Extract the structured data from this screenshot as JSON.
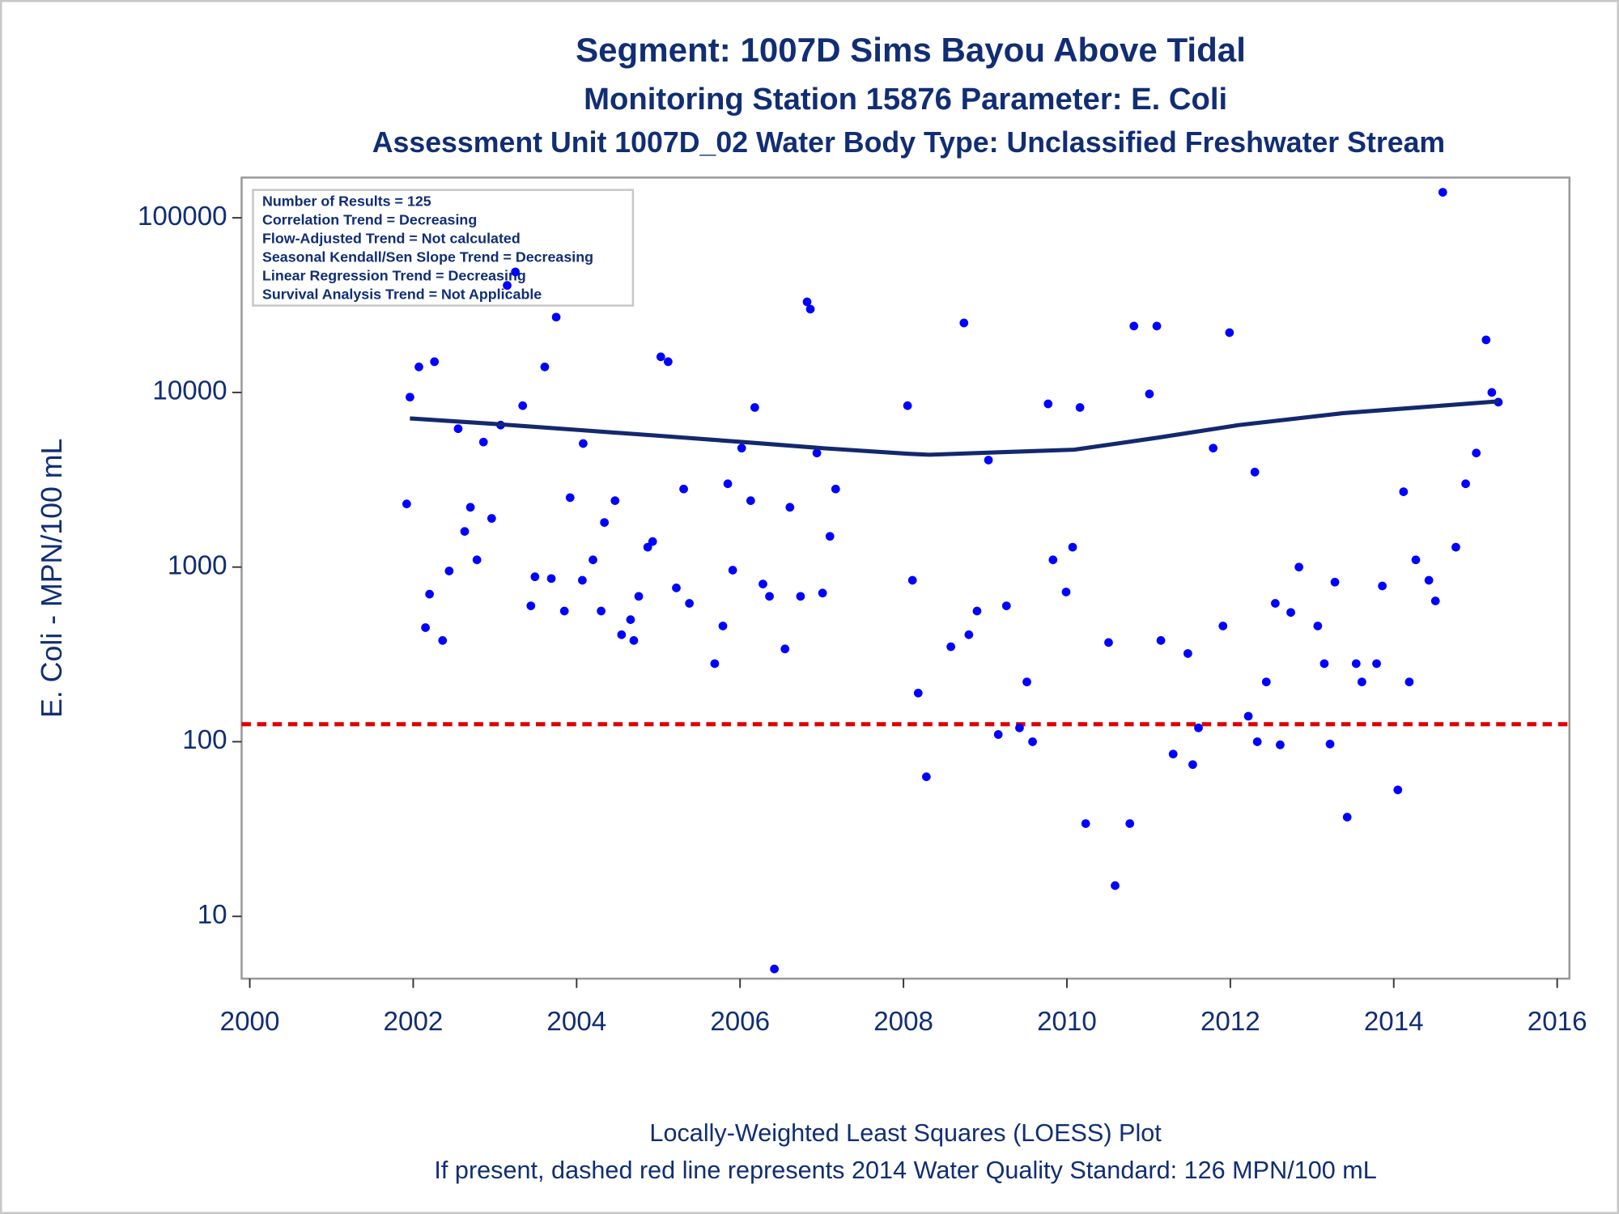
{
  "chart_data": {
    "type": "scatter",
    "title": "Segment: 1007D  Sims Bayou Above Tidal",
    "subtitle": "Monitoring Station 15876 Parameter: E. Coli",
    "subtitle2": "Assessment Unit 1007D_02   Water Body Type: Unclassified Freshwater Stream",
    "y_label": "E. Coli - MPN/100 mL",
    "footnotes": [
      "Locally-Weighted Least Squares (LOESS) Plot",
      "If present, dashed red line represents 2014 Water Quality Standard: 126 MPN/100 mL"
    ],
    "stats": [
      "Number of Results = 125",
      "Correlation Trend = Decreasing",
      "Flow-Adjusted Trend = Not calculated",
      "Seasonal Kendall/Sen Slope Trend = Decreasing",
      "Linear Regression Trend = Decreasing",
      "Survival Analysis Trend = Not Applicable"
    ],
    "log_y": true,
    "xlim": [
      1999.9,
      2016.15
    ],
    "xticks": [
      2000,
      2002,
      2004,
      2006,
      2008,
      2010,
      2012,
      2014,
      2016
    ],
    "ylim": [
      4.4,
      170000
    ],
    "yticks": [
      10,
      100,
      1000,
      10000,
      100000
    ],
    "color": "#0000ff",
    "x": [
      2001.92,
      2001.96,
      2002.07,
      2002.15,
      2002.2,
      2002.26,
      2002.36,
      2002.44,
      2002.55,
      2002.63,
      2002.7,
      2002.78,
      2002.86,
      2002.96,
      2003.07,
      2003.15,
      2003.25,
      2003.34,
      2003.44,
      2003.49,
      2003.61,
      2003.69,
      2003.75,
      2003.85,
      2003.92,
      2004.07,
      2004.08,
      2004.2,
      2004.3,
      2004.34,
      2004.47,
      2004.55,
      2004.66,
      2004.7,
      2004.76,
      2004.87,
      2004.93,
      2005.03,
      2005.12,
      2005.22,
      2005.31,
      2005.38,
      2005.69,
      2005.79,
      2005.85,
      2005.91,
      2006.02,
      2006.13,
      2006.18,
      2006.28,
      2006.36,
      2006.42,
      2006.55,
      2006.61,
      2006.74,
      2006.82,
      2006.86,
      2006.94,
      2007.01,
      2007.1,
      2007.17,
      2008.05,
      2008.11,
      2008.18,
      2008.28,
      2008.58,
      2008.74,
      2008.8,
      2008.9,
      2009.04,
      2009.16,
      2009.26,
      2009.42,
      2009.51,
      2009.58,
      2009.77,
      2009.83,
      2009.99,
      2010.07,
      2010.16,
      2010.23,
      2010.51,
      2010.59,
      2010.77,
      2010.82,
      2011.01,
      2011.1,
      2011.15,
      2011.3,
      2011.48,
      2011.54,
      2011.61,
      2011.79,
      2011.91,
      2011.99,
      2012.22,
      2012.3,
      2012.33,
      2012.44,
      2012.55,
      2012.61,
      2012.74,
      2012.84,
      2013.07,
      2013.15,
      2013.22,
      2013.28,
      2013.43,
      2013.54,
      2013.61,
      2013.79,
      2013.86,
      2014.05,
      2014.12,
      2014.19,
      2014.27,
      2014.43,
      2014.51,
      2014.6,
      2014.76,
      2014.88,
      2015.01,
      2015.13,
      2015.2,
      2015.28
    ],
    "values": [
      2300,
      9400,
      14000,
      450,
      700,
      15000,
      380,
      950,
      6200,
      1600,
      2200,
      1100,
      5200,
      1900,
      6500,
      41000,
      49000,
      8400,
      600,
      880,
      14000,
      860,
      27000,
      560,
      2500,
      840,
      5100,
      1100,
      560,
      1800,
      2400,
      410,
      500,
      380,
      680,
      1300,
      1400,
      16000,
      15000,
      760,
      2800,
      620,
      280,
      460,
      3000,
      960,
      4800,
      2400,
      8200,
      800,
      680,
      5,
      340,
      2200,
      680,
      33000,
      30000,
      4500,
      710,
      1500,
      2800,
      8400,
      840,
      190,
      63,
      350,
      25000,
      410,
      560,
      4100,
      110,
      600,
      120,
      220,
      100,
      8600,
      1100,
      720,
      1300,
      8200,
      34,
      370,
      15,
      34,
      24000,
      9800,
      24000,
      380,
      85,
      320,
      74,
      120,
      4800,
      460,
      22000,
      140,
      3500,
      100,
      220,
      620,
      96,
      550,
      1000,
      460,
      280,
      97,
      820,
      37,
      280,
      220,
      280,
      780,
      53,
      2700,
      220,
      1100,
      840,
      640,
      140000,
      1300,
      3000,
      4500,
      20000,
      10000,
      8800
    ],
    "loess": {
      "color": "#14286e",
      "x": [
        2001.96,
        2003.0,
        2004.02,
        2005.0,
        2006.04,
        2007.0,
        2008.06,
        2008.32,
        2009.2,
        2010.09,
        2011.1,
        2012.1,
        2013.37,
        2014.3,
        2015.29
      ],
      "values": [
        7100,
        6600,
        6100,
        5650,
        5200,
        4800,
        4450,
        4400,
        4550,
        4700,
        5500,
        6500,
        7600,
        8200,
        8900
      ]
    },
    "reference_line": {
      "value": 126,
      "color": "#dd0000"
    }
  }
}
